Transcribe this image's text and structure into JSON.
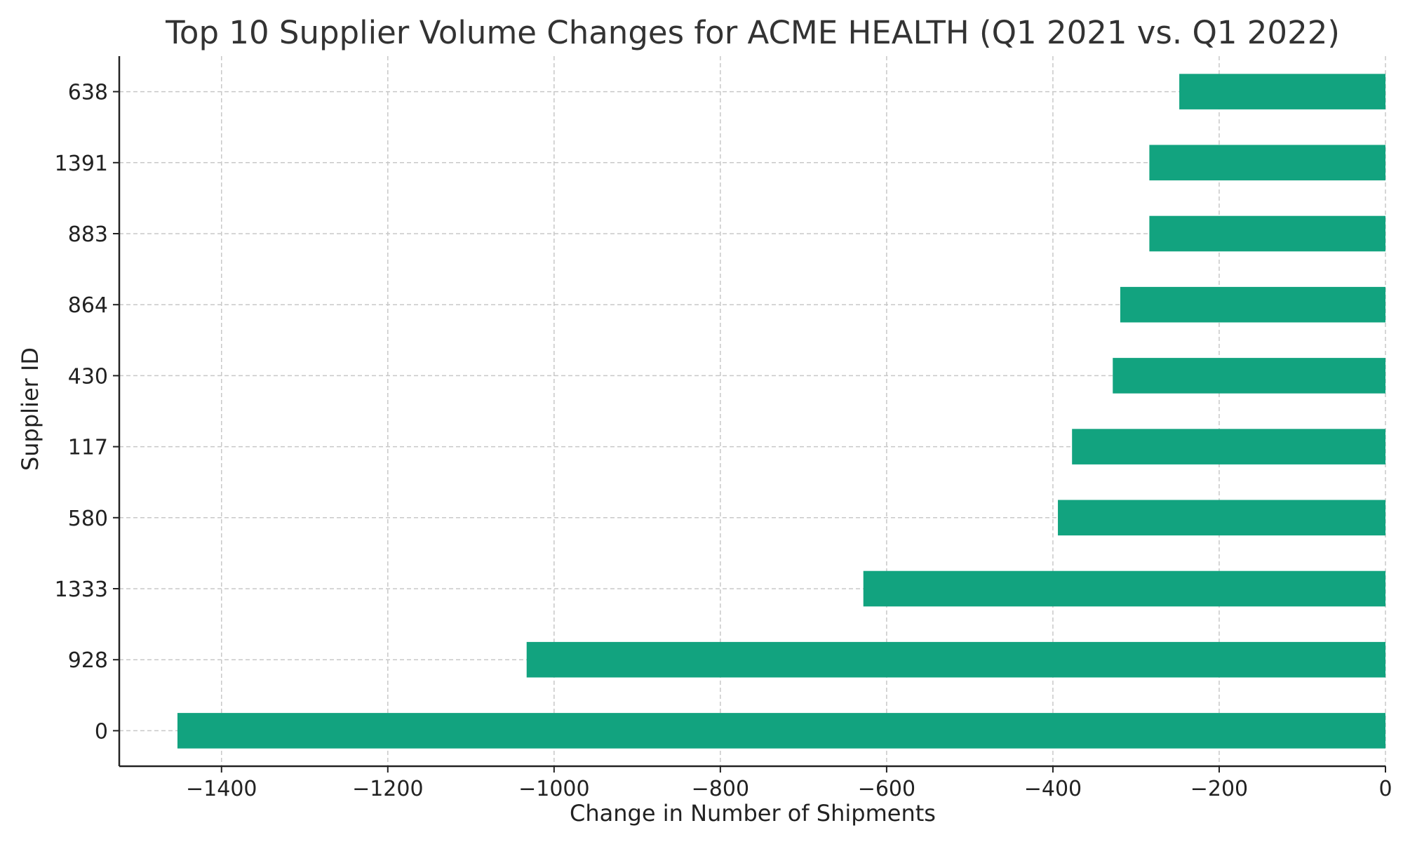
{
  "chart_data": {
    "type": "bar",
    "orientation": "horizontal",
    "title": "Top 10 Supplier Volume Changes for ACME HEALTH (Q1 2021 vs. Q1 2022)",
    "xlabel": "Change in Number of Shipments",
    "ylabel": "Supplier ID",
    "categories": [
      "0",
      "928",
      "1333",
      "580",
      "117",
      "430",
      "864",
      "883",
      "1391",
      "638"
    ],
    "values": [
      -1453,
      -1033,
      -628,
      -394,
      -377,
      -328,
      -319,
      -284,
      -284,
      -248
    ],
    "xlim": [
      -1523,
      0
    ],
    "xticks": [
      -1400,
      -1200,
      -1000,
      -800,
      -600,
      -400,
      -200,
      0
    ],
    "xtick_labels": [
      "−1400",
      "−1200",
      "−1000",
      "−800",
      "−600",
      "−400",
      "−200",
      "0"
    ],
    "grid": true,
    "bar_color": "#12a37f",
    "title_color": "#333333"
  }
}
